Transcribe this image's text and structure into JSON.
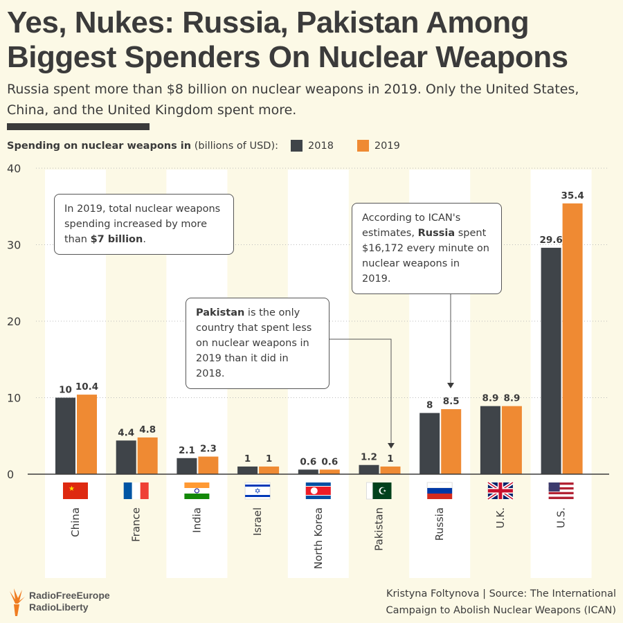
{
  "title": "Yes, Nukes: Russia, Pakistan Among Biggest Spenders On Nuclear Weapons",
  "subtitle": "Russia spent more than $8 billion on nuclear weapons in 2019. Only the United States, China, and the United Kingdom spent more.",
  "legend": {
    "bold": "Spending on nuclear weapons in",
    "rest": "(billions of USD):"
  },
  "annotations": [
    {
      "pre": "In 2019, total nuclear weapons spending increased by more than ",
      "bold": "$7 billion",
      "post": "."
    },
    {
      "pre": "",
      "bold": "Pakistan",
      "post": " is the only country that spent less on nuclear weapons in 2019 than it did in 2018."
    },
    {
      "pre": "According to ICAN's estimates, ",
      "bold": "Russia",
      "post": " spent $16,172 every minute on nuclear weapons in 2019."
    }
  ],
  "credit": {
    "line1": "Kristyna Foltynova | Source: The International",
    "line2": "Campaign to Abolish Nuclear Weapons (ICAN)"
  },
  "logo": {
    "line1": "RadioFreeEurope",
    "line2": "RadioLiberty"
  },
  "colors": {
    "s2018": "#3f4449",
    "s2019": "#ef8a33",
    "stripe": "#ffffff"
  },
  "chart_data": {
    "type": "bar",
    "categories": [
      "China",
      "France",
      "India",
      "Israel",
      "North Korea",
      "Pakistan",
      "Russia",
      "U.K.",
      "U.S."
    ],
    "series": [
      {
        "name": "2018",
        "values": [
          10,
          4.4,
          2.1,
          1,
          0.6,
          1.2,
          8,
          8.9,
          29.6
        ]
      },
      {
        "name": "2019",
        "values": [
          10.4,
          4.8,
          2.3,
          1,
          0.6,
          1,
          8.5,
          8.9,
          35.4
        ]
      }
    ],
    "labels2018": [
      "10",
      "4.4",
      "2.1",
      "1",
      "0.6",
      "1.2",
      "8",
      "8.9",
      "29.6"
    ],
    "labels2019": [
      "10.4",
      "4.8",
      "2.3",
      "1",
      "0.6",
      "1",
      "8.5",
      "8.9",
      "35.4"
    ],
    "yticks": [
      0,
      10,
      20,
      30,
      40
    ],
    "ylim": [
      0,
      40
    ],
    "grid": true,
    "legend": "top-left"
  }
}
